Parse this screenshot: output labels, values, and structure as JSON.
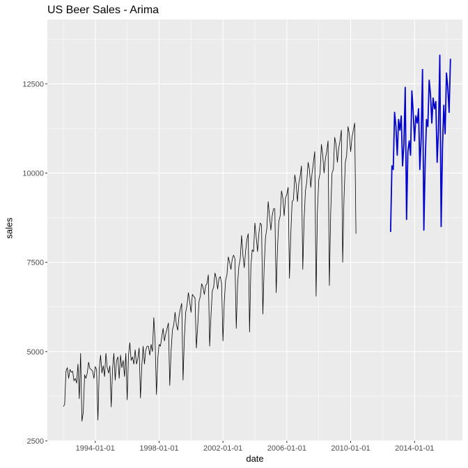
{
  "chart_data": {
    "type": "line",
    "title": "US Beer Sales - Arima",
    "xlabel": "date",
    "ylabel": "sales",
    "x_ticks": [
      "1994-01-01",
      "1998-01-01",
      "2002-01-01",
      "2006-01-01",
      "2010-01-01",
      "2014-01-01"
    ],
    "y_ticks": [
      2500,
      5000,
      7500,
      10000,
      12500
    ],
    "xlim": [
      1991.0,
      2017.0
    ],
    "ylim": [
      2500,
      14300
    ],
    "grid": true,
    "colors": {
      "panel": "#ebebeb",
      "grid": "#ffffff",
      "history": "#000000",
      "forecast": "#0000cd"
    },
    "series": [
      {
        "key": "history",
        "start": 1992.0,
        "step": 0.08333,
        "values": [
          3460,
          3520,
          4450,
          4550,
          4250,
          4500,
          4420,
          4450,
          4180,
          4250,
          4120,
          4650,
          3680,
          4950,
          3050,
          3300,
          4350,
          4250,
          4400,
          4700,
          4520,
          4500,
          4450,
          4250,
          4580,
          4500,
          3080,
          4500,
          4900,
          4400,
          4600,
          4300,
          4950,
          4550,
          4400,
          4600,
          3450,
          4500,
          4950,
          4200,
          4750,
          4850,
          4250,
          4900,
          4550,
          4750,
          4300,
          4950,
          3650,
          4900,
          5250,
          4750,
          4850,
          4650,
          5050,
          4650,
          4800,
          5100,
          3700,
          4600,
          5150,
          4650,
          5050,
          5150,
          5150,
          4900,
          5200,
          5000,
          5950,
          5300,
          3800,
          4800,
          5200,
          5150,
          5400,
          5650,
          5300,
          5500,
          5650,
          5800,
          4050,
          5000,
          5600,
          5750,
          6100,
          5750,
          5600,
          6000,
          6200,
          6350,
          4200,
          5400,
          6100,
          6300,
          6650,
          6400,
          6100,
          6600,
          6550,
          6500,
          5100,
          5700,
          6400,
          6550,
          6900,
          6800,
          6600,
          6850,
          6900,
          7150,
          5150,
          6000,
          6700,
          6800,
          7200,
          7050,
          6750,
          7050,
          7100,
          6900,
          5300,
          6400,
          7000,
          7150,
          7650,
          7500,
          7300,
          7600,
          7700,
          7600,
          5650,
          6900,
          7400,
          7600,
          8250,
          7700,
          7350,
          7800,
          8150,
          8300,
          5550,
          7400,
          7850,
          7800,
          8600,
          8200,
          7800,
          8300,
          8600,
          8550,
          6050,
          7400,
          8200,
          8450,
          9200,
          8800,
          8400,
          8800,
          9000,
          9000,
          6650,
          7900,
          8650,
          8800,
          9500,
          9300,
          8800,
          9300,
          9400,
          9600,
          7050,
          8300,
          9200,
          9250,
          9950,
          9700,
          9200,
          9700,
          9900,
          10200,
          7300,
          8700,
          9500,
          9750,
          10300,
          10100,
          9600,
          10000,
          10300,
          10600,
          6550,
          8900,
          9800,
          10000,
          10800,
          10500,
          10000,
          10400,
          10600,
          10900,
          6850,
          8900,
          10000,
          10100,
          11000,
          10800,
          10300,
          10700,
          10900,
          11200,
          7500,
          9300,
          10300,
          10500,
          11300,
          11100,
          10600,
          11000,
          11200,
          11400,
          8300
        ]
      },
      {
        "key": "forecast",
        "start": 2012.5,
        "step": 0.08333,
        "values": [
          8350,
          10200,
          10100,
          11700,
          11300,
          10500,
          11500,
          11200,
          11600,
          10200,
          10800,
          12400,
          8700,
          10600,
          10900,
          10500,
          12300,
          11700,
          10900,
          11600,
          11400,
          11800,
          10100,
          11000,
          12900,
          8400,
          10300,
          11500,
          11300,
          12600,
          12200,
          11400,
          12100,
          11800,
          12000,
          10300,
          11200,
          13300,
          8500,
          10700,
          11900,
          11100,
          12800,
          12400,
          11700,
          13200
        ]
      }
    ]
  }
}
